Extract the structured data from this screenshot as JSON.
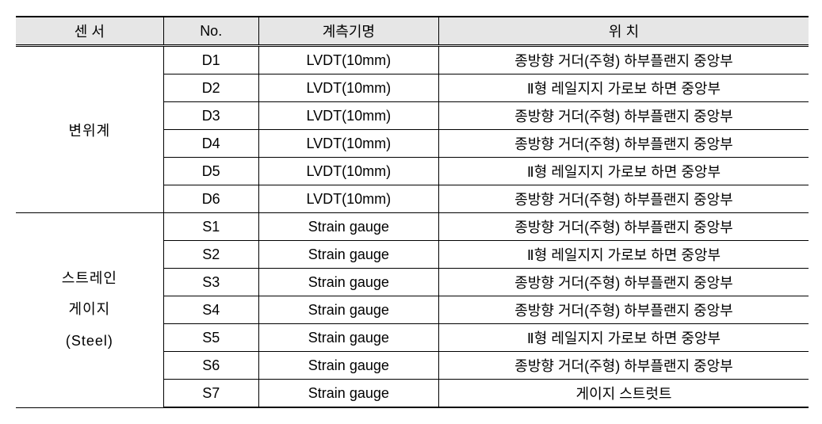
{
  "headers": {
    "sensor": "센 서",
    "no": "No.",
    "instrument": "계측기명",
    "location": "위   치"
  },
  "group1": {
    "label": "변위계",
    "rows": [
      {
        "no": "D1",
        "instrument": "LVDT(10mm)",
        "location": "종방향 거더(주형) 하부플랜지 중앙부"
      },
      {
        "no": "D2",
        "instrument": "LVDT(10mm)",
        "location": "Ⅱ형 레일지지 가로보 하면 중앙부"
      },
      {
        "no": "D3",
        "instrument": "LVDT(10mm)",
        "location": "종방향 거더(주형) 하부플랜지 중앙부"
      },
      {
        "no": "D4",
        "instrument": "LVDT(10mm)",
        "location": "종방향 거더(주형) 하부플랜지 중앙부"
      },
      {
        "no": "D5",
        "instrument": "LVDT(10mm)",
        "location": "Ⅱ형 레일지지 가로보 하면 중앙부"
      },
      {
        "no": "D6",
        "instrument": "LVDT(10mm)",
        "location": "종방향 거더(주형) 하부플랜지 중앙부"
      }
    ]
  },
  "group2": {
    "label_line1": "스트레인",
    "label_line2": "게이지",
    "label_line3": "(Steel)",
    "rows": [
      {
        "no": "S1",
        "instrument": "Strain gauge",
        "location": "종방향 거더(주형) 하부플랜지 중앙부"
      },
      {
        "no": "S2",
        "instrument": "Strain gauge",
        "location": "Ⅱ형 레일지지 가로보 하면 중앙부"
      },
      {
        "no": "S3",
        "instrument": "Strain gauge",
        "location": "종방향 거더(주형) 하부플랜지 중앙부"
      },
      {
        "no": "S4",
        "instrument": "Strain gauge",
        "location": "종방향 거더(주형) 하부플랜지 중앙부"
      },
      {
        "no": "S5",
        "instrument": "Strain gauge",
        "location": "Ⅱ형 레일지지 가로보 하면 중앙부"
      },
      {
        "no": "S6",
        "instrument": "Strain gauge",
        "location": "종방향 거더(주형) 하부플랜지 중앙부"
      },
      {
        "no": "S7",
        "instrument": "Strain gauge",
        "location": "게이지 스트럿트"
      }
    ]
  }
}
